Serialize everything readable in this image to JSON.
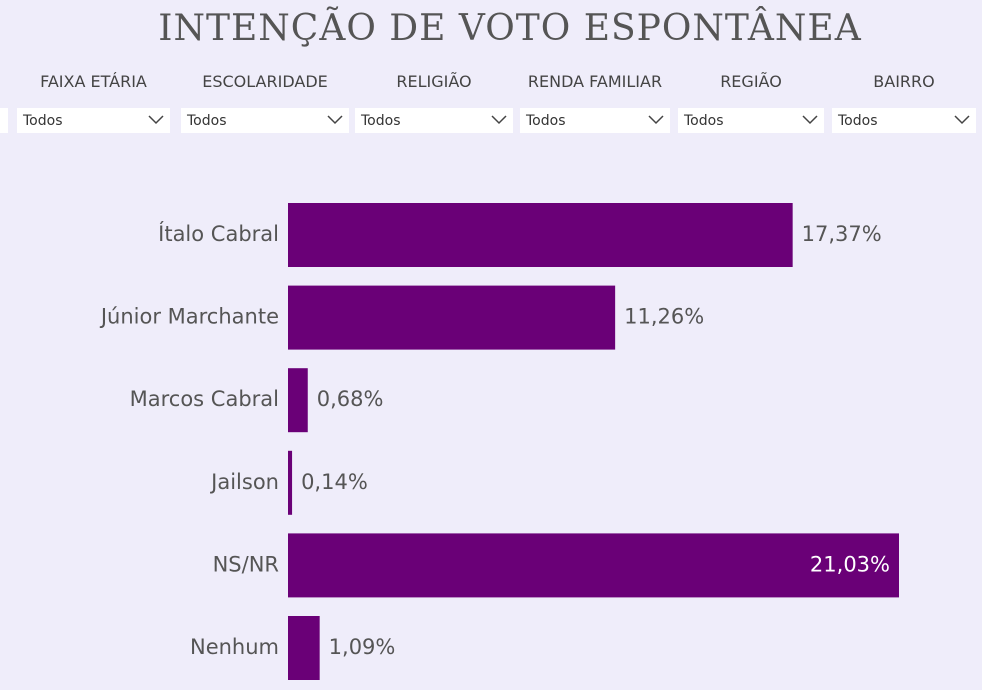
{
  "title": "INTENÇÃO DE VOTO ESPONTÂNEA",
  "filters": [
    {
      "label": "FAIXA ETÁRIA",
      "value": "Todos"
    },
    {
      "label": "ESCOLARIDADE",
      "value": "Todos"
    },
    {
      "label": "RELIGIÃO",
      "value": "Todos"
    },
    {
      "label": "RENDA FAMILIAR",
      "value": "Todos"
    },
    {
      "label": "REGIÃO",
      "value": "Todos"
    },
    {
      "label": "BAIRRO",
      "value": "Todos"
    }
  ],
  "chart_data": {
    "type": "bar",
    "orientation": "horizontal",
    "categories": [
      "Ítalo Cabral",
      "Júnior Marchante",
      "Marcos Cabral",
      "Jailson",
      "NS/NR",
      "Nenhum"
    ],
    "values": [
      17.37,
      11.26,
      0.68,
      0.14,
      21.03,
      1.09
    ],
    "value_labels": [
      "17,37%",
      "11,26%",
      "0,68%",
      "0,14%",
      "21,03%",
      "1,09%"
    ],
    "color": "#6a0077"
  }
}
